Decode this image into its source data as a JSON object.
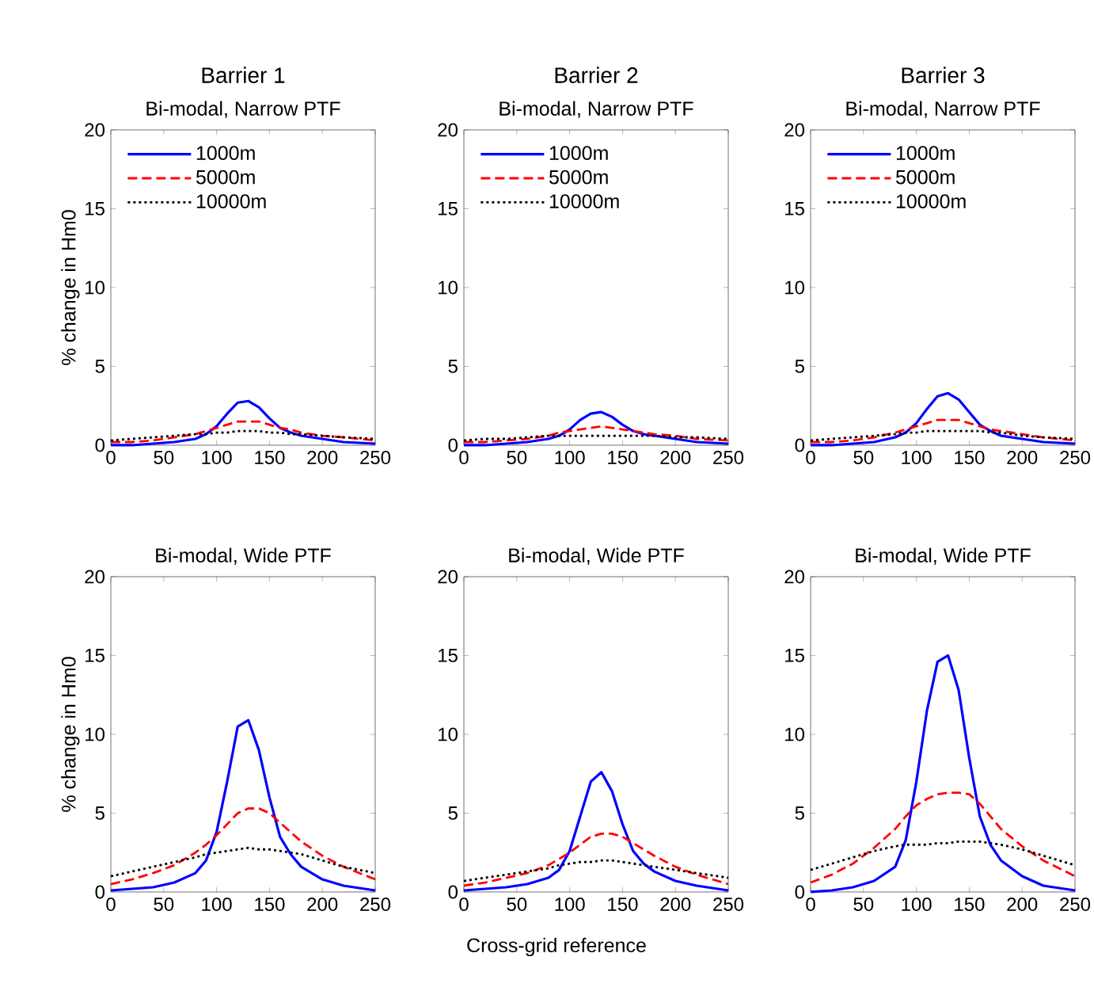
{
  "chart_data": [
    {
      "type": "line",
      "title": "Barrier 1",
      "subtitle": "Bi-modal, Narrow PTF",
      "ylabel": "% change in Hm0",
      "x": [
        0,
        20,
        40,
        60,
        80,
        90,
        100,
        110,
        120,
        130,
        140,
        150,
        160,
        170,
        180,
        200,
        220,
        250
      ],
      "xlim": [
        0,
        250
      ],
      "xticks": [
        0,
        50,
        100,
        150,
        200,
        250
      ],
      "ylim": [
        0,
        20
      ],
      "yticks": [
        0,
        5,
        10,
        15,
        20
      ],
      "legend": "top left",
      "series": [
        {
          "name": "1000m",
          "color": "#0000ff",
          "line_style": "solid",
          "values": [
            0.0,
            0.0,
            0.1,
            0.2,
            0.4,
            0.7,
            1.2,
            2.0,
            2.7,
            2.8,
            2.4,
            1.7,
            1.1,
            0.8,
            0.6,
            0.4,
            0.2,
            0.1
          ]
        },
        {
          "name": "5000m",
          "color": "#ff0000",
          "line_style": "dashed",
          "values": [
            0.2,
            0.2,
            0.3,
            0.5,
            0.7,
            0.9,
            1.1,
            1.3,
            1.5,
            1.5,
            1.5,
            1.3,
            1.1,
            1.0,
            0.8,
            0.6,
            0.5,
            0.3
          ]
        },
        {
          "name": "10000m",
          "color": "#000000",
          "line_style": "dotted",
          "values": [
            0.3,
            0.4,
            0.5,
            0.6,
            0.7,
            0.7,
            0.8,
            0.8,
            0.9,
            0.9,
            0.9,
            0.8,
            0.8,
            0.7,
            0.7,
            0.6,
            0.5,
            0.4
          ]
        }
      ]
    },
    {
      "type": "line",
      "title": "Barrier 2",
      "subtitle": "Bi-modal, Narrow PTF",
      "x": [
        0,
        20,
        40,
        60,
        80,
        90,
        100,
        110,
        120,
        130,
        140,
        150,
        160,
        170,
        180,
        200,
        220,
        250
      ],
      "xlim": [
        0,
        250
      ],
      "xticks": [
        0,
        50,
        100,
        150,
        200,
        250
      ],
      "ylim": [
        0,
        20
      ],
      "yticks": [
        0,
        5,
        10,
        15,
        20
      ],
      "legend": "top left",
      "series": [
        {
          "name": "1000m",
          "color": "#0000ff",
          "line_style": "solid",
          "values": [
            0.0,
            0.0,
            0.1,
            0.2,
            0.4,
            0.6,
            1.0,
            1.6,
            2.0,
            2.1,
            1.8,
            1.3,
            0.9,
            0.7,
            0.6,
            0.4,
            0.2,
            0.1
          ]
        },
        {
          "name": "5000m",
          "color": "#ff0000",
          "line_style": "dashed",
          "values": [
            0.2,
            0.2,
            0.3,
            0.4,
            0.6,
            0.8,
            0.9,
            1.0,
            1.1,
            1.2,
            1.1,
            1.0,
            0.9,
            0.8,
            0.7,
            0.6,
            0.4,
            0.3
          ]
        },
        {
          "name": "10000m",
          "color": "#000000",
          "line_style": "dotted",
          "values": [
            0.3,
            0.4,
            0.4,
            0.5,
            0.6,
            0.6,
            0.6,
            0.6,
            0.6,
            0.6,
            0.6,
            0.6,
            0.6,
            0.6,
            0.6,
            0.5,
            0.5,
            0.4
          ]
        }
      ]
    },
    {
      "type": "line",
      "title": "Barrier 3",
      "subtitle": "Bi-modal, Narrow PTF",
      "x": [
        0,
        20,
        40,
        60,
        80,
        90,
        100,
        110,
        120,
        130,
        140,
        150,
        160,
        170,
        180,
        200,
        220,
        250
      ],
      "xlim": [
        0,
        250
      ],
      "xticks": [
        0,
        50,
        100,
        150,
        200,
        250
      ],
      "ylim": [
        0,
        20
      ],
      "yticks": [
        0,
        5,
        10,
        15,
        20
      ],
      "legend": "top left",
      "series": [
        {
          "name": "1000m",
          "color": "#0000ff",
          "line_style": "solid",
          "values": [
            0.0,
            0.0,
            0.1,
            0.2,
            0.5,
            0.8,
            1.4,
            2.3,
            3.1,
            3.3,
            2.9,
            2.1,
            1.3,
            0.9,
            0.6,
            0.4,
            0.2,
            0.1
          ]
        },
        {
          "name": "5000m",
          "color": "#ff0000",
          "line_style": "dashed",
          "values": [
            0.2,
            0.2,
            0.3,
            0.5,
            0.8,
            1.0,
            1.2,
            1.4,
            1.6,
            1.6,
            1.6,
            1.4,
            1.2,
            1.0,
            0.9,
            0.7,
            0.5,
            0.3
          ]
        },
        {
          "name": "10000m",
          "color": "#000000",
          "line_style": "dotted",
          "values": [
            0.3,
            0.4,
            0.5,
            0.6,
            0.7,
            0.8,
            0.8,
            0.9,
            0.9,
            0.9,
            0.9,
            0.9,
            0.9,
            0.8,
            0.8,
            0.6,
            0.5,
            0.4
          ]
        }
      ]
    },
    {
      "type": "line",
      "title": "Bi-modal, Wide PTF",
      "ylabel": "% change in Hm0",
      "x": [
        0,
        20,
        40,
        60,
        80,
        90,
        100,
        110,
        120,
        130,
        140,
        150,
        160,
        170,
        180,
        200,
        220,
        250
      ],
      "xlim": [
        0,
        250
      ],
      "xticks": [
        0,
        50,
        100,
        150,
        200,
        250
      ],
      "ylim": [
        0,
        20
      ],
      "yticks": [
        0,
        5,
        10,
        15,
        20
      ],
      "series": [
        {
          "color": "#0000ff",
          "line_style": "solid",
          "values": [
            0.1,
            0.2,
            0.3,
            0.6,
            1.2,
            2.0,
            3.8,
            7.0,
            10.5,
            10.9,
            9.0,
            6.0,
            3.5,
            2.4,
            1.6,
            0.8,
            0.4,
            0.1
          ]
        },
        {
          "color": "#ff0000",
          "line_style": "dashed",
          "values": [
            0.5,
            0.8,
            1.2,
            1.7,
            2.5,
            3.0,
            3.6,
            4.3,
            5.0,
            5.3,
            5.3,
            5.0,
            4.4,
            3.8,
            3.2,
            2.3,
            1.6,
            0.8
          ]
        },
        {
          "color": "#000000",
          "line_style": "dotted",
          "values": [
            1.0,
            1.3,
            1.6,
            1.9,
            2.2,
            2.4,
            2.5,
            2.6,
            2.7,
            2.8,
            2.7,
            2.7,
            2.6,
            2.5,
            2.4,
            2.0,
            1.6,
            1.2
          ]
        }
      ]
    },
    {
      "type": "line",
      "title": "Bi-modal, Wide PTF",
      "xlabel": "Cross-grid reference",
      "x": [
        0,
        20,
        40,
        60,
        80,
        90,
        100,
        110,
        120,
        130,
        140,
        150,
        160,
        170,
        180,
        200,
        220,
        250
      ],
      "xlim": [
        0,
        250
      ],
      "xticks": [
        0,
        50,
        100,
        150,
        200,
        250
      ],
      "ylim": [
        0,
        20
      ],
      "yticks": [
        0,
        5,
        10,
        15,
        20
      ],
      "series": [
        {
          "color": "#0000ff",
          "line_style": "solid",
          "values": [
            0.1,
            0.2,
            0.3,
            0.5,
            0.9,
            1.4,
            2.6,
            4.8,
            7.0,
            7.6,
            6.4,
            4.3,
            2.6,
            1.8,
            1.3,
            0.7,
            0.4,
            0.1
          ]
        },
        {
          "color": "#ff0000",
          "line_style": "dashed",
          "values": [
            0.4,
            0.6,
            0.9,
            1.2,
            1.7,
            2.1,
            2.5,
            3.0,
            3.5,
            3.7,
            3.7,
            3.5,
            3.1,
            2.7,
            2.3,
            1.6,
            1.1,
            0.5
          ]
        },
        {
          "color": "#000000",
          "line_style": "dotted",
          "values": [
            0.7,
            0.9,
            1.1,
            1.3,
            1.5,
            1.7,
            1.8,
            1.9,
            1.9,
            2.0,
            2.0,
            1.9,
            1.8,
            1.7,
            1.6,
            1.4,
            1.2,
            0.9
          ]
        }
      ]
    },
    {
      "type": "line",
      "title": "Bi-modal, Wide PTF",
      "x": [
        0,
        20,
        40,
        60,
        80,
        90,
        100,
        110,
        120,
        130,
        140,
        150,
        160,
        170,
        180,
        200,
        220,
        250
      ],
      "xlim": [
        0,
        250
      ],
      "xticks": [
        0,
        50,
        100,
        150,
        200,
        250
      ],
      "ylim": [
        0,
        20
      ],
      "yticks": [
        0,
        5,
        10,
        15,
        20
      ],
      "series": [
        {
          "color": "#0000ff",
          "line_style": "solid",
          "values": [
            0.0,
            0.1,
            0.3,
            0.7,
            1.6,
            3.3,
            7.0,
            11.5,
            14.6,
            15.0,
            12.8,
            8.5,
            4.8,
            3.0,
            2.0,
            1.0,
            0.4,
            0.1
          ]
        },
        {
          "color": "#ff0000",
          "line_style": "dashed",
          "values": [
            0.6,
            1.1,
            1.8,
            2.8,
            4.0,
            4.8,
            5.5,
            5.9,
            6.2,
            6.3,
            6.3,
            6.2,
            5.6,
            4.8,
            4.0,
            2.9,
            2.0,
            1.0
          ]
        },
        {
          "color": "#000000",
          "line_style": "dotted",
          "values": [
            1.4,
            1.8,
            2.2,
            2.6,
            2.9,
            3.0,
            3.0,
            3.0,
            3.1,
            3.1,
            3.2,
            3.2,
            3.2,
            3.1,
            3.0,
            2.7,
            2.3,
            1.7
          ]
        }
      ]
    }
  ]
}
